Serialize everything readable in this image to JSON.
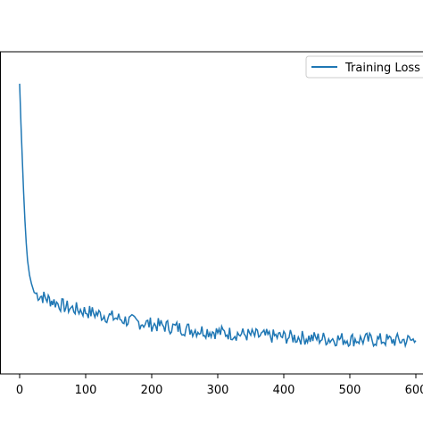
{
  "chart_data": {
    "type": "line",
    "title": "",
    "xlabel": "",
    "ylabel": "",
    "xlim": [
      -30,
      610
    ],
    "ylim": [
      0,
      1
    ],
    "grid": false,
    "legend_placement": "top-right",
    "x_ticks": [
      0,
      100,
      200,
      300,
      400,
      500,
      600
    ],
    "x_tick_labels": [
      "0",
      "100",
      "200",
      "300",
      "400",
      "500",
      "600"
    ],
    "series": [
      {
        "name": "Training Loss",
        "color": "#1f77b4",
        "x": [
          0,
          2,
          4,
          6,
          8,
          10,
          12,
          15,
          18,
          22,
          26,
          30,
          35,
          40,
          45,
          50,
          60,
          70,
          80,
          90,
          100,
          110,
          120,
          130,
          140,
          150,
          160,
          170,
          180,
          190,
          200,
          210,
          220,
          230,
          240,
          250,
          260,
          270,
          280,
          290,
          300,
          310,
          320,
          330,
          340,
          350,
          360,
          370,
          380,
          390,
          400,
          410,
          420,
          430,
          440,
          450,
          460,
          470,
          480,
          490,
          500,
          510,
          520,
          530,
          540,
          550,
          560,
          570,
          580,
          590,
          600
        ],
        "y": [
          0.97,
          0.83,
          0.71,
          0.6,
          0.5,
          0.42,
          0.36,
          0.31,
          0.28,
          0.25,
          0.245,
          0.24,
          0.235,
          0.23,
          0.225,
          0.22,
          0.21,
          0.2,
          0.195,
          0.19,
          0.185,
          0.18,
          0.175,
          0.17,
          0.165,
          0.16,
          0.155,
          0.15,
          0.147,
          0.144,
          0.14,
          0.137,
          0.134,
          0.131,
          0.128,
          0.125,
          0.122,
          0.12,
          0.118,
          0.116,
          0.113,
          0.111,
          0.109,
          0.107,
          0.105,
          0.103,
          0.101,
          0.1,
          0.099,
          0.098,
          0.097,
          0.096,
          0.095,
          0.094,
          0.093,
          0.092,
          0.091,
          0.09,
          0.09,
          0.089,
          0.088,
          0.088,
          0.087,
          0.087,
          0.086,
          0.086,
          0.085,
          0.085,
          0.085,
          0.085,
          0.084
        ]
      }
    ]
  }
}
